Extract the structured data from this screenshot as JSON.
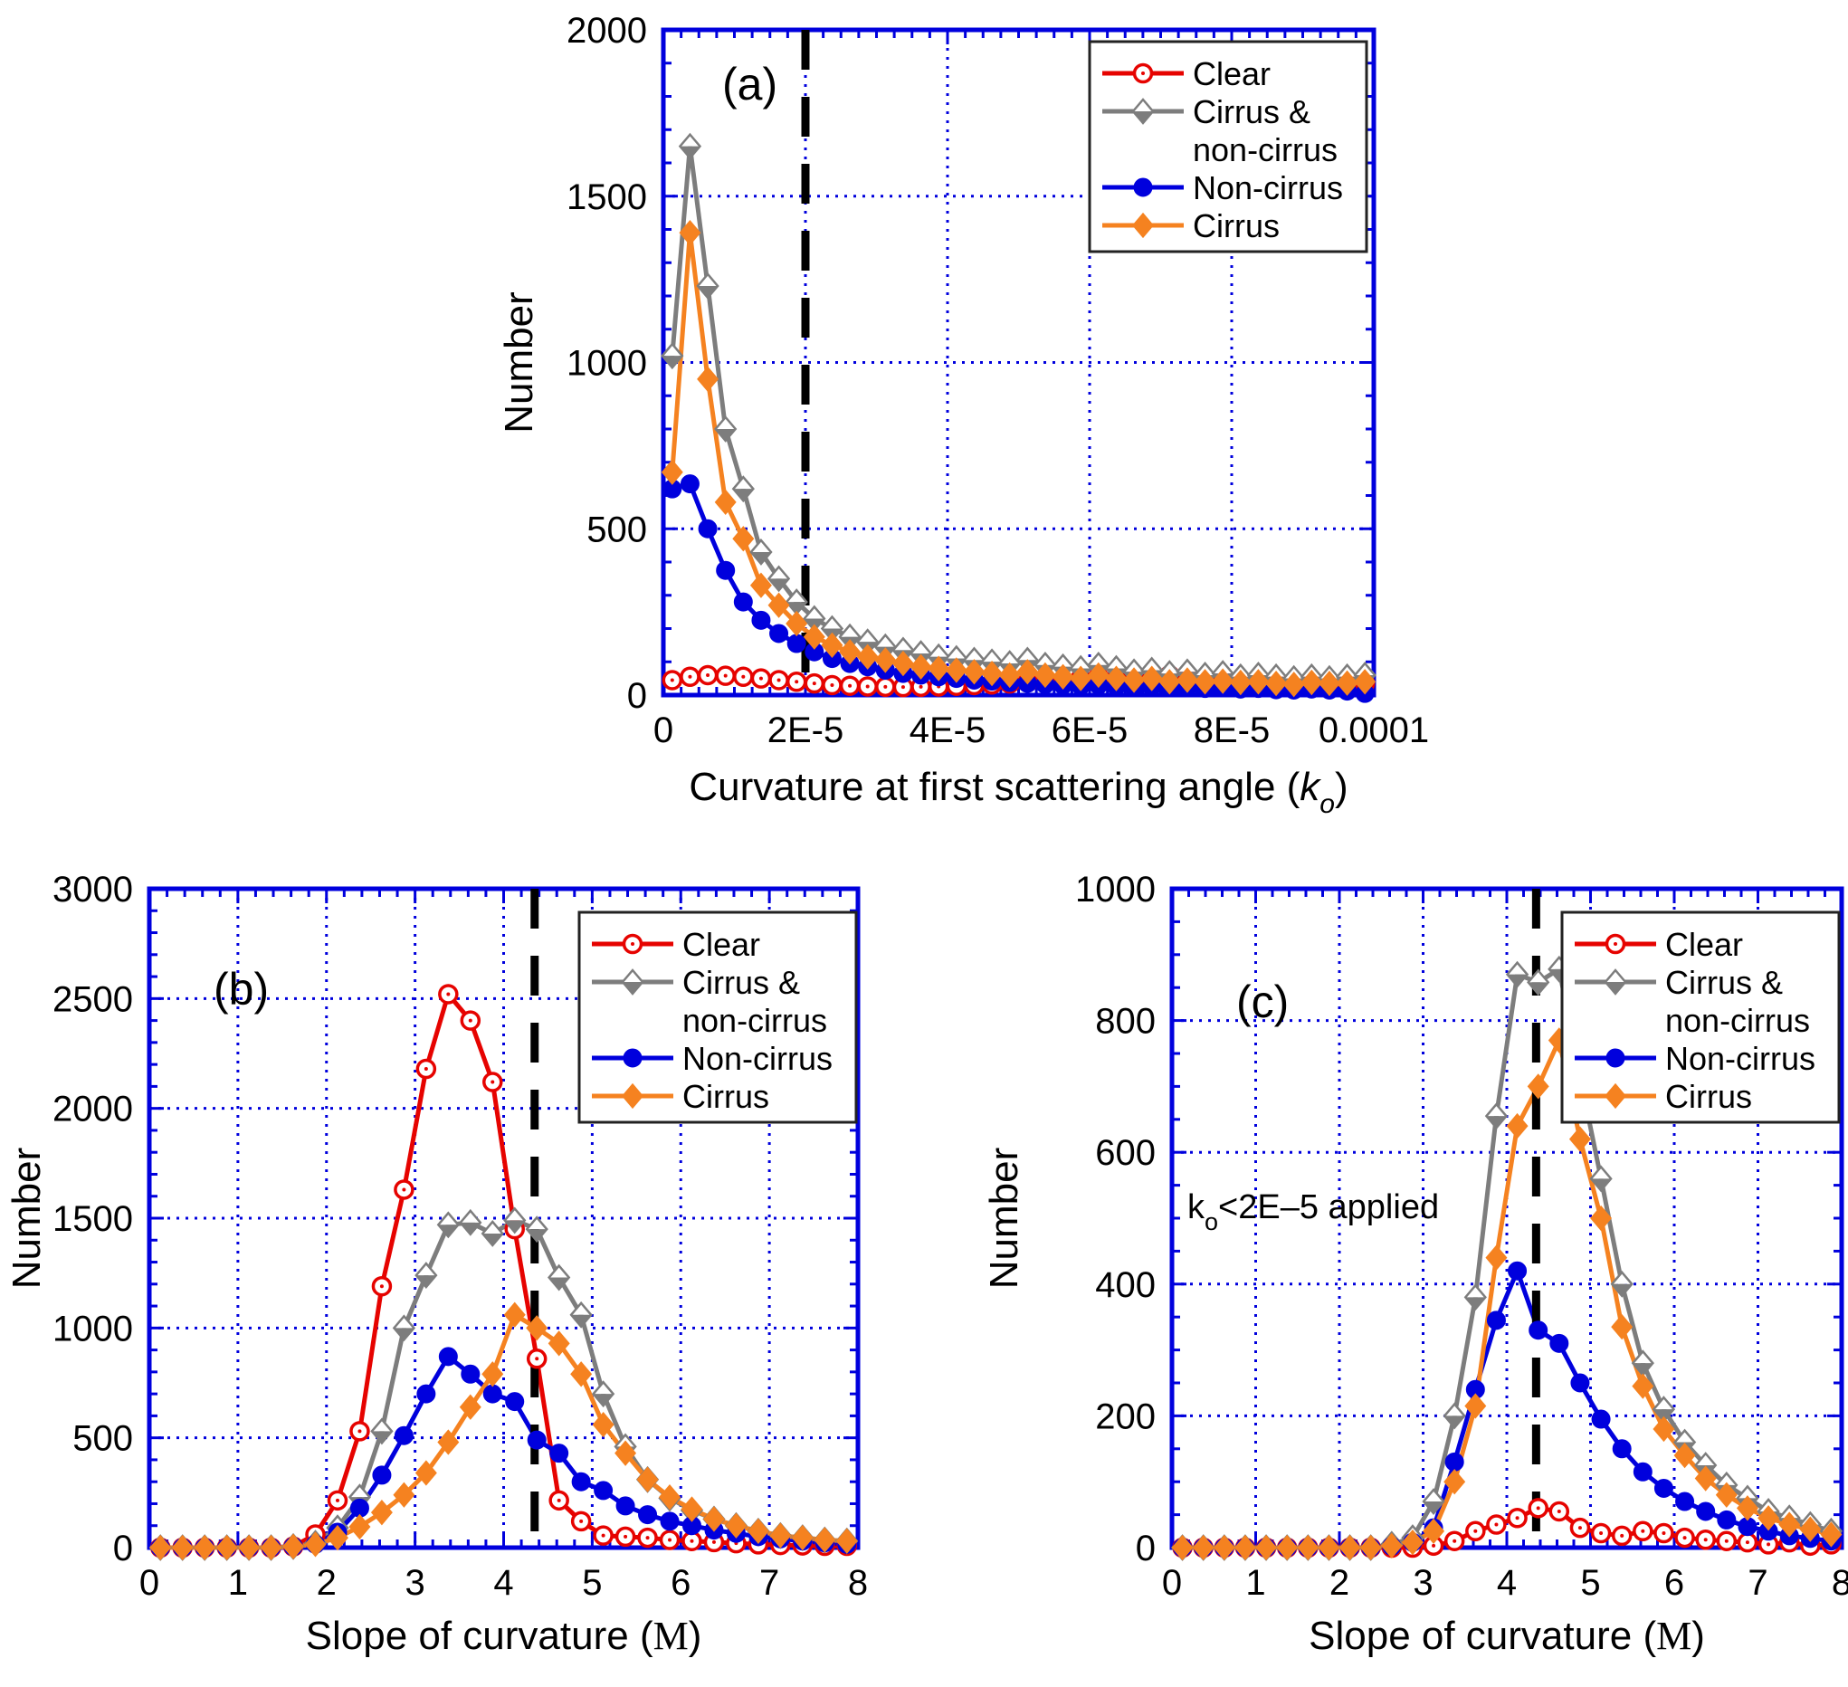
{
  "colors": {
    "frame": "#0000dd",
    "grid": "#0000dd",
    "vline": "#000000",
    "text": "#000000",
    "clear": "#e60300",
    "cirrus_non": "#7d7d7d",
    "non_cirrus": "#0000dd",
    "cirrus": "#f58220",
    "legend_border": "#222222",
    "legend_bg": "#ffffff"
  },
  "legend": {
    "items": [
      {
        "key": "clear",
        "lines": [
          "Clear"
        ],
        "marker": "open-circle"
      },
      {
        "key": "cirrus_non",
        "lines": [
          "Cirrus &",
          "non-cirrus"
        ],
        "marker": "half-diamond"
      },
      {
        "key": "non_cirrus",
        "lines": [
          "Non-cirrus"
        ],
        "marker": "filled-circle"
      },
      {
        "key": "cirrus",
        "lines": [
          "Cirrus"
        ],
        "marker": "filled-diamond"
      }
    ]
  },
  "chart_data": [
    {
      "id": "a",
      "tag": "(a)",
      "type": "line",
      "ylabel": "Number",
      "xlabel": {
        "prefix": "Curvature at first scattering angle (",
        "symbol": "k",
        "sub": "o",
        "suffix": ")",
        "symbol_style": "italic"
      },
      "xlim": [
        0,
        0.0001
      ],
      "ylim": [
        0,
        2000
      ],
      "xticks": {
        "values": [
          0,
          2e-05,
          4e-05,
          6e-05,
          8e-05,
          0.0001
        ],
        "labels": [
          "0",
          "2E-5",
          "4E-5",
          "6E-5",
          "8E-5",
          "0.0001"
        ]
      },
      "yticks": {
        "values": [
          0,
          500,
          1000,
          1500,
          2000
        ],
        "labels": [
          "0",
          "500",
          "1000",
          "1500",
          "2000"
        ]
      },
      "x_minor_step": 2.5e-06,
      "y_minor_step": 100,
      "vline_x": 2e-05,
      "grid": true,
      "legend_position": "top-right",
      "x": [
        1.25e-06,
        3.75e-06,
        6.25e-06,
        8.75e-06,
        1.125e-05,
        1.375e-05,
        1.625e-05,
        1.875e-05,
        2.125e-05,
        2.375e-05,
        2.625e-05,
        2.875e-05,
        3.125e-05,
        3.375e-05,
        3.625e-05,
        3.875e-05,
        4.125e-05,
        4.375e-05,
        4.625e-05,
        4.875e-05,
        5.125e-05,
        5.375e-05,
        5.625e-05,
        5.875e-05,
        6.125e-05,
        6.375e-05,
        6.625e-05,
        6.875e-05,
        7.125e-05,
        7.375e-05,
        7.625e-05,
        7.875e-05,
        8.125e-05,
        8.375e-05,
        8.625e-05,
        8.875e-05,
        9.125e-05,
        9.375e-05,
        9.625e-05,
        9.875e-05
      ],
      "series": [
        {
          "name": "Clear",
          "color_key": "clear",
          "marker": "open-circle",
          "values": [
            45,
            55,
            60,
            58,
            55,
            50,
            45,
            40,
            35,
            30,
            28,
            26,
            25,
            24,
            25,
            26,
            28,
            30,
            32,
            35,
            38,
            40,
            45,
            50,
            55,
            50,
            45,
            55,
            60,
            50,
            45,
            50,
            40,
            45,
            35,
            40,
            35,
            30,
            35,
            35
          ]
        },
        {
          "name": "Cirrus & non-cirrus",
          "color_key": "cirrus_non",
          "marker": "half-diamond",
          "values": [
            1020,
            1650,
            1230,
            800,
            620,
            430,
            350,
            280,
            230,
            200,
            175,
            160,
            145,
            135,
            125,
            115,
            110,
            105,
            100,
            95,
            105,
            90,
            85,
            80,
            90,
            80,
            70,
            75,
            65,
            70,
            60,
            65,
            55,
            60,
            55,
            50,
            55,
            50,
            55,
            60
          ]
        },
        {
          "name": "Non-cirrus",
          "color_key": "non_cirrus",
          "marker": "filled-circle",
          "values": [
            620,
            635,
            500,
            375,
            280,
            225,
            185,
            155,
            130,
            110,
            95,
            85,
            75,
            65,
            60,
            55,
            50,
            45,
            42,
            38,
            35,
            32,
            30,
            28,
            30,
            26,
            24,
            25,
            22,
            24,
            20,
            22,
            18,
            20,
            16,
            15,
            18,
            15,
            12,
            5
          ]
        },
        {
          "name": "Cirrus",
          "color_key": "cirrus",
          "marker": "filled-diamond",
          "values": [
            670,
            1390,
            950,
            580,
            470,
            330,
            270,
            215,
            175,
            150,
            130,
            115,
            105,
            95,
            85,
            80,
            75,
            70,
            65,
            60,
            70,
            60,
            55,
            50,
            60,
            50,
            45,
            50,
            40,
            45,
            40,
            42,
            38,
            40,
            35,
            32,
            38,
            35,
            36,
            40
          ]
        }
      ]
    },
    {
      "id": "b",
      "tag": "(b)",
      "type": "line",
      "ylabel": "Number",
      "xlabel": {
        "prefix": "Slope of curvature (",
        "symbol": "M",
        "sub": "",
        "suffix": ")",
        "symbol_style": "serif"
      },
      "xlim": [
        0,
        8
      ],
      "ylim": [
        0,
        3000
      ],
      "xticks": {
        "values": [
          0,
          1,
          2,
          3,
          4,
          5,
          6,
          7,
          8
        ],
        "labels": [
          "0",
          "1",
          "2",
          "3",
          "4",
          "5",
          "6",
          "7",
          "8"
        ]
      },
      "yticks": {
        "values": [
          0,
          500,
          1000,
          1500,
          2000,
          2500,
          3000
        ],
        "labels": [
          "0",
          "500",
          "1000",
          "1500",
          "2000",
          "2500",
          "3000"
        ]
      },
      "x_minor_step": 0.2,
      "y_minor_step": 100,
      "vline_x": 4.35,
      "grid": true,
      "legend_position": "top-right",
      "x": [
        0.125,
        0.375,
        0.625,
        0.875,
        1.125,
        1.375,
        1.625,
        1.875,
        2.125,
        2.375,
        2.625,
        2.875,
        3.125,
        3.375,
        3.625,
        3.875,
        4.125,
        4.375,
        4.625,
        4.875,
        5.125,
        5.375,
        5.625,
        5.875,
        6.125,
        6.375,
        6.625,
        6.875,
        7.125,
        7.375,
        7.625,
        7.875
      ],
      "series": [
        {
          "name": "Clear",
          "color_key": "clear",
          "marker": "open-circle",
          "values": [
            0,
            0,
            0,
            0,
            0,
            0,
            5,
            60,
            215,
            530,
            1190,
            1630,
            2180,
            2520,
            2400,
            2120,
            1450,
            860,
            215,
            120,
            55,
            50,
            45,
            35,
            30,
            25,
            20,
            15,
            12,
            10,
            8,
            8
          ]
        },
        {
          "name": "Cirrus & non-cirrus",
          "color_key": "cirrus_non",
          "marker": "half-diamond",
          "values": [
            0,
            0,
            0,
            0,
            0,
            0,
            5,
            20,
            90,
            230,
            530,
            1000,
            1240,
            1470,
            1480,
            1430,
            1490,
            1450,
            1230,
            1060,
            700,
            460,
            310,
            225,
            170,
            130,
            100,
            75,
            55,
            45,
            35,
            30
          ]
        },
        {
          "name": "Non-cirrus",
          "color_key": "non_cirrus",
          "marker": "filled-circle",
          "values": [
            0,
            0,
            0,
            0,
            0,
            0,
            5,
            15,
            70,
            180,
            330,
            510,
            700,
            870,
            790,
            700,
            665,
            490,
            430,
            300,
            260,
            190,
            150,
            120,
            100,
            80,
            65,
            50,
            40,
            30,
            22,
            15
          ]
        },
        {
          "name": "Cirrus",
          "color_key": "cirrus",
          "marker": "filled-diamond",
          "values": [
            0,
            0,
            0,
            0,
            0,
            0,
            5,
            15,
            45,
            95,
            160,
            240,
            340,
            480,
            640,
            790,
            1060,
            1000,
            930,
            790,
            560,
            430,
            310,
            230,
            175,
            130,
            100,
            75,
            55,
            45,
            35,
            30
          ]
        }
      ]
    },
    {
      "id": "c",
      "tag": "(c)",
      "type": "line",
      "ylabel": "Number",
      "xlabel": {
        "prefix": "Slope of curvature (",
        "symbol": "M",
        "sub": "",
        "suffix": ")",
        "symbol_style": "serif"
      },
      "annotation": {
        "symbol": "k",
        "sub": "o",
        "text": "<2E–5 applied"
      },
      "xlim": [
        0,
        8
      ],
      "ylim": [
        0,
        1000
      ],
      "xticks": {
        "values": [
          0,
          1,
          2,
          3,
          4,
          5,
          6,
          7,
          8
        ],
        "labels": [
          "0",
          "1",
          "2",
          "3",
          "4",
          "5",
          "6",
          "7",
          "8"
        ]
      },
      "yticks": {
        "values": [
          0,
          200,
          400,
          600,
          800,
          1000
        ],
        "labels": [
          "0",
          "200",
          "400",
          "600",
          "800",
          "1000"
        ]
      },
      "x_minor_step": 0.2,
      "y_minor_step": 50,
      "vline_x": 4.35,
      "grid": true,
      "legend_position": "top-right",
      "x": [
        0.125,
        0.375,
        0.625,
        0.875,
        1.125,
        1.375,
        1.625,
        1.875,
        2.125,
        2.375,
        2.625,
        2.875,
        3.125,
        3.375,
        3.625,
        3.875,
        4.125,
        4.375,
        4.625,
        4.875,
        5.125,
        5.375,
        5.625,
        5.875,
        6.125,
        6.375,
        6.625,
        6.875,
        7.125,
        7.375,
        7.625,
        7.875
      ],
      "series": [
        {
          "name": "Clear",
          "color_key": "clear",
          "marker": "open-circle",
          "values": [
            0,
            0,
            0,
            0,
            0,
            0,
            0,
            0,
            0,
            0,
            0,
            0,
            3,
            10,
            25,
            35,
            45,
            60,
            55,
            30,
            22,
            18,
            25,
            22,
            15,
            12,
            10,
            8,
            5,
            8,
            3,
            5
          ]
        },
        {
          "name": "Cirrus & non-cirrus",
          "color_key": "cirrus_non",
          "marker": "half-diamond",
          "values": [
            0,
            0,
            0,
            0,
            0,
            0,
            0,
            0,
            0,
            0,
            5,
            15,
            70,
            200,
            380,
            655,
            870,
            858,
            878,
            715,
            560,
            400,
            280,
            210,
            160,
            125,
            95,
            75,
            55,
            45,
            35,
            25
          ]
        },
        {
          "name": "Non-cirrus",
          "color_key": "non_cirrus",
          "marker": "filled-circle",
          "values": [
            0,
            0,
            0,
            0,
            0,
            0,
            0,
            0,
            0,
            0,
            2,
            8,
            30,
            130,
            240,
            345,
            420,
            330,
            310,
            250,
            195,
            150,
            115,
            90,
            70,
            55,
            42,
            32,
            25,
            18,
            14,
            10
          ]
        },
        {
          "name": "Cirrus",
          "color_key": "cirrus",
          "marker": "filled-diamond",
          "values": [
            0,
            0,
            0,
            0,
            0,
            0,
            0,
            0,
            0,
            0,
            3,
            8,
            25,
            100,
            215,
            440,
            640,
            700,
            770,
            620,
            500,
            335,
            245,
            180,
            140,
            105,
            80,
            60,
            45,
            35,
            28,
            20
          ]
        }
      ]
    }
  ]
}
